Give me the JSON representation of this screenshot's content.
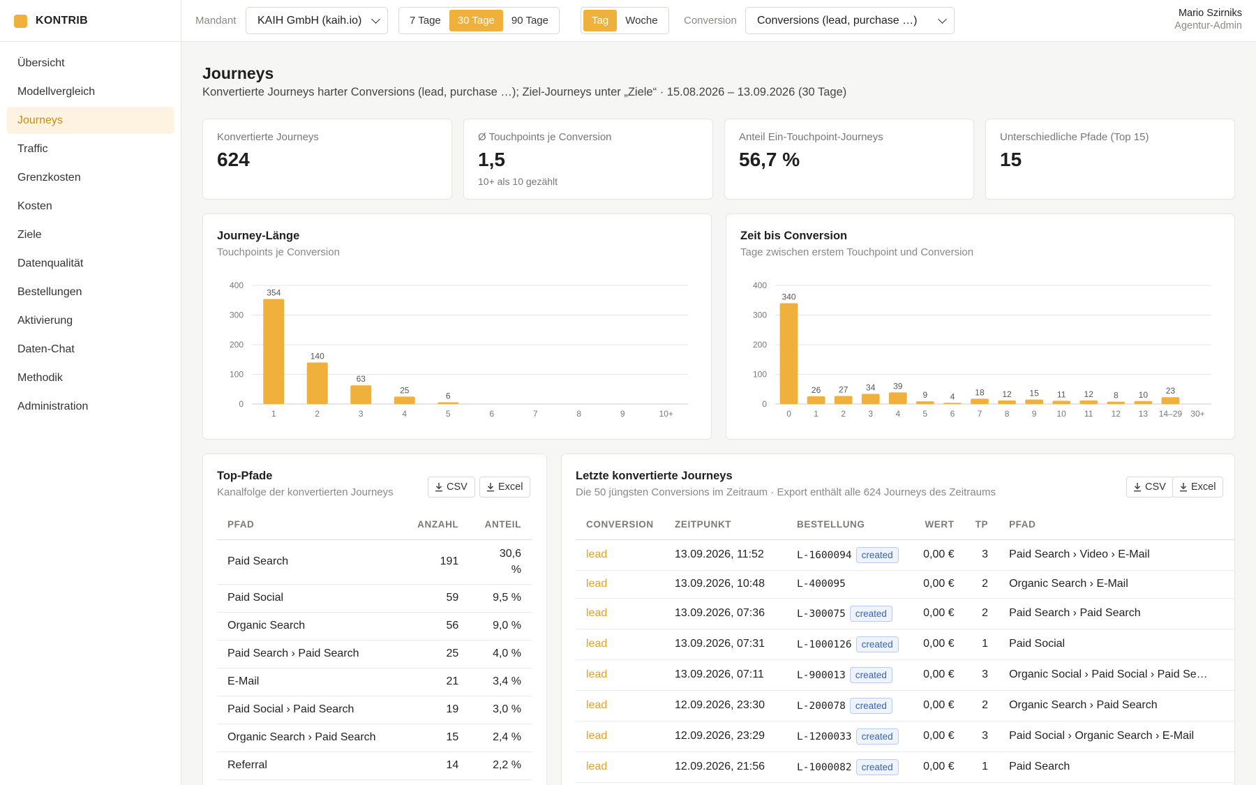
{
  "brand": {
    "name": "KONTRIB",
    "color": "#f0b03c"
  },
  "topbar": {
    "mandant_label": "Mandant",
    "mandant_value": "KAIH GmbH (kaih.io)",
    "range_options": [
      "7 Tage",
      "30 Tage",
      "90 Tage"
    ],
    "range_active": "30 Tage",
    "granularity_options": [
      "Tag",
      "Woche"
    ],
    "granularity_active": "Tag",
    "conversion_label": "Conversion",
    "conversion_value": "Conversions (lead, purchase …)"
  },
  "user": {
    "name": "Mario Szirniks",
    "role": "Agentur-Admin"
  },
  "sidebar": {
    "items": [
      {
        "label": "Übersicht"
      },
      {
        "label": "Modellvergleich"
      },
      {
        "label": "Journeys",
        "active": true
      },
      {
        "label": "Traffic"
      },
      {
        "label": "Grenzkosten"
      },
      {
        "label": "Kosten"
      },
      {
        "label": "Ziele"
      },
      {
        "label": "Datenqualität"
      },
      {
        "label": "Bestellungen"
      },
      {
        "label": "Aktivierung"
      },
      {
        "label": "Daten-Chat"
      },
      {
        "label": "Methodik"
      },
      {
        "label": "Administration"
      }
    ]
  },
  "page": {
    "title": "Journeys",
    "subtitle": "Konvertierte Journeys harter Conversions (lead, purchase …); Ziel-Journeys unter „Ziele“ · 15.08.2026 – 13.09.2026 (30 Tage)"
  },
  "kpis": [
    {
      "label": "Konvertierte Journeys",
      "value": "624",
      "note": ""
    },
    {
      "label": "Ø Touchpoints je Conversion",
      "value": "1,5",
      "note": "10+ als 10 gezählt"
    },
    {
      "label": "Anteil Ein-Touchpoint-Journeys",
      "value": "56,7 %",
      "note": ""
    },
    {
      "label": "Unterschiedliche Pfade (Top 15)",
      "value": "15",
      "note": ""
    }
  ],
  "chart_data": [
    {
      "type": "bar",
      "title": "Journey-Länge",
      "subtitle": "Touchpoints je Conversion",
      "categories": [
        "1",
        "2",
        "3",
        "4",
        "5",
        "6",
        "7",
        "8",
        "9",
        "10+"
      ],
      "values": [
        354,
        140,
        63,
        25,
        6,
        0,
        0,
        0,
        0,
        0
      ],
      "data_labels": [
        "354",
        "140",
        "63",
        "25",
        "6",
        "",
        "",
        "",
        "",
        ""
      ],
      "ylim": [
        0,
        400
      ],
      "yticks": [
        "0",
        "100",
        "200",
        "300",
        "400"
      ],
      "grid": true,
      "color": "#f0b03c"
    },
    {
      "type": "bar",
      "title": "Zeit bis Conversion",
      "subtitle": "Tage zwischen erstem Touchpoint und Conversion",
      "categories": [
        "0",
        "1",
        "2",
        "3",
        "4",
        "5",
        "6",
        "7",
        "8",
        "9",
        "10",
        "11",
        "12",
        "13",
        "14–29",
        "30+"
      ],
      "values": [
        340,
        26,
        27,
        34,
        39,
        9,
        4,
        18,
        12,
        15,
        11,
        12,
        8,
        10,
        23,
        0
      ],
      "data_labels": [
        "340",
        "26",
        "27",
        "34",
        "39",
        "9",
        "4",
        "18",
        "12",
        "15",
        "11",
        "12",
        "8",
        "10",
        "23",
        ""
      ],
      "ylim": [
        0,
        400
      ],
      "yticks": [
        "0",
        "100",
        "200",
        "300",
        "400"
      ],
      "grid": true,
      "color": "#f0b03c"
    }
  ],
  "top_paths": {
    "title": "Top-Pfade",
    "subtitle": "Kanalfolge der konvertierten Journeys",
    "csv_label": "CSV",
    "excel_label": "Excel",
    "columns": [
      "PFAD",
      "ANZAHL",
      "ANTEIL"
    ],
    "rows": [
      {
        "path": "Paid Search",
        "count": "191",
        "share_a": "30,6",
        "share_b": "%"
      },
      {
        "path": "Paid Social",
        "count": "59",
        "share_a": "9,5 %",
        "share_b": ""
      },
      {
        "path": "Organic Search",
        "count": "56",
        "share_a": "9,0 %",
        "share_b": ""
      },
      {
        "path": "Paid Search › Paid Search",
        "count": "25",
        "share_a": "4,0 %",
        "share_b": ""
      },
      {
        "path": "E-Mail",
        "count": "21",
        "share_a": "3,4 %",
        "share_b": ""
      },
      {
        "path": "Paid Social › Paid Search",
        "count": "19",
        "share_a": "3,0 %",
        "share_b": ""
      },
      {
        "path": "Organic Search › Paid Search",
        "count": "15",
        "share_a": "2,4 %",
        "share_b": ""
      },
      {
        "path": "Referral",
        "count": "14",
        "share_a": "2,2 %",
        "share_b": ""
      }
    ]
  },
  "recent": {
    "title": "Letzte konvertierte Journeys",
    "subtitle": "Die 50 jüngsten Conversions im Zeitraum · Export enthält alle 624 Journeys des Zeitraums",
    "csv_label": "CSV",
    "excel_label": "Excel",
    "columns": [
      "CONVERSION",
      "ZEITPUNKT",
      "BESTELLUNG",
      "WERT",
      "TP",
      "PFAD"
    ],
    "rows": [
      {
        "conversion": "lead",
        "time": "13.09.2026, 11:52",
        "order": "L-1600094",
        "badge": "created",
        "value": "0,00 €",
        "tp": "3",
        "path": "Paid Search › Video › E-Mail"
      },
      {
        "conversion": "lead",
        "time": "13.09.2026, 10:48",
        "order": "L-400095",
        "badge": "",
        "value": "0,00 €",
        "tp": "2",
        "path": "Organic Search › E-Mail"
      },
      {
        "conversion": "lead",
        "time": "13.09.2026, 07:36",
        "order": "L-300075",
        "badge": "created",
        "value": "0,00 €",
        "tp": "2",
        "path": "Paid Search › Paid Search"
      },
      {
        "conversion": "lead",
        "time": "13.09.2026, 07:31",
        "order": "L-1000126",
        "badge": "created",
        "value": "0,00 €",
        "tp": "1",
        "path": "Paid Social"
      },
      {
        "conversion": "lead",
        "time": "13.09.2026, 07:11",
        "order": "L-900013",
        "badge": "created",
        "value": "0,00 €",
        "tp": "3",
        "path": "Organic Social › Paid Social › Paid Se…"
      },
      {
        "conversion": "lead",
        "time": "12.09.2026, 23:30",
        "order": "L-200078",
        "badge": "created",
        "value": "0,00 €",
        "tp": "2",
        "path": "Organic Search › Paid Search"
      },
      {
        "conversion": "lead",
        "time": "12.09.2026, 23:29",
        "order": "L-1200033",
        "badge": "created",
        "value": "0,00 €",
        "tp": "3",
        "path": "Paid Social › Organic Search › E-Mail"
      },
      {
        "conversion": "lead",
        "time": "12.09.2026, 21:56",
        "order": "L-1000082",
        "badge": "created",
        "value": "0,00 €",
        "tp": "1",
        "path": "Paid Search"
      }
    ]
  }
}
